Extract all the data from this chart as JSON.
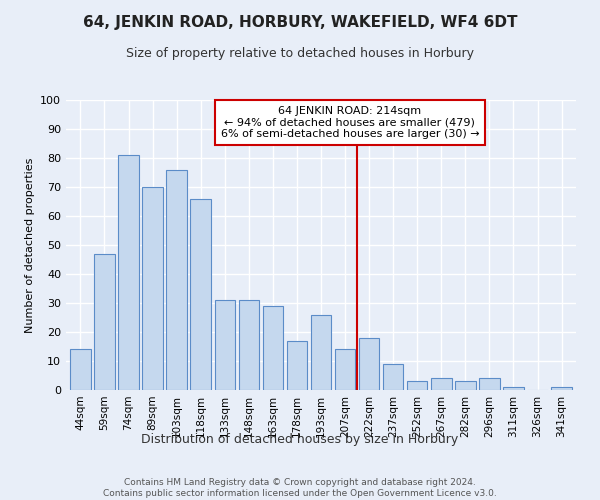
{
  "title": "64, JENKIN ROAD, HORBURY, WAKEFIELD, WF4 6DT",
  "subtitle": "Size of property relative to detached houses in Horbury",
  "xlabel": "Distribution of detached houses by size in Horbury",
  "ylabel": "Number of detached properties",
  "footer": "Contains HM Land Registry data © Crown copyright and database right 2024.\nContains public sector information licensed under the Open Government Licence v3.0.",
  "categories": [
    "44sqm",
    "59sqm",
    "74sqm",
    "89sqm",
    "103sqm",
    "118sqm",
    "133sqm",
    "148sqm",
    "163sqm",
    "178sqm",
    "193sqm",
    "207sqm",
    "222sqm",
    "237sqm",
    "252sqm",
    "267sqm",
    "282sqm",
    "296sqm",
    "311sqm",
    "326sqm",
    "341sqm"
  ],
  "values": [
    14,
    47,
    81,
    70,
    76,
    66,
    31,
    31,
    29,
    17,
    26,
    14,
    18,
    9,
    3,
    4,
    3,
    4,
    1,
    0,
    1
  ],
  "bar_color": "#c5d8ee",
  "bar_edge_color": "#5b8cc8",
  "background_color": "#e8eef8",
  "grid_color": "#ffffff",
  "vline_x_index": 11.5,
  "vline_color": "#cc0000",
  "annotation_text": "64 JENKIN ROAD: 214sqm\n← 94% of detached houses are smaller (479)\n6% of semi-detached houses are larger (30) →",
  "annotation_box_color": "#cc0000",
  "ylim": [
    0,
    100
  ],
  "yticks": [
    0,
    10,
    20,
    30,
    40,
    50,
    60,
    70,
    80,
    90,
    100
  ],
  "title_fontsize": 11,
  "subtitle_fontsize": 9,
  "ylabel_fontsize": 8,
  "xlabel_fontsize": 9,
  "tick_fontsize": 8,
  "xtick_fontsize": 7.5,
  "footer_fontsize": 6.5,
  "annotation_fontsize": 8
}
